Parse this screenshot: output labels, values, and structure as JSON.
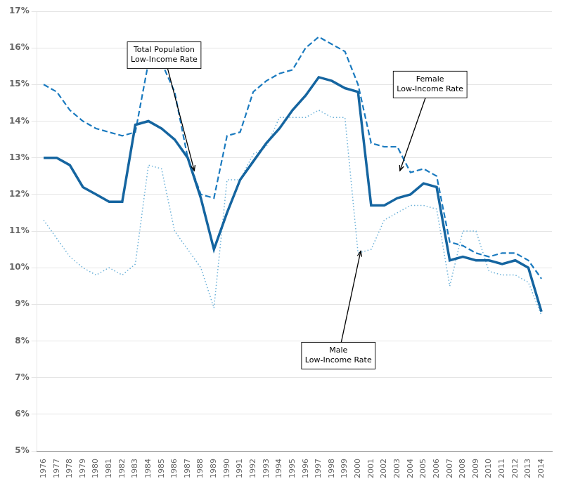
{
  "chart_data": {
    "type": "line",
    "x": [
      1976,
      1977,
      1978,
      1979,
      1980,
      1981,
      1982,
      1983,
      1984,
      1985,
      1986,
      1987,
      1988,
      1989,
      1990,
      1991,
      1992,
      1993,
      1994,
      1995,
      1996,
      1997,
      1998,
      1999,
      2000,
      2001,
      2002,
      2003,
      2004,
      2005,
      2006,
      2007,
      2008,
      2009,
      2010,
      2011,
      2012,
      2013,
      2014
    ],
    "series": [
      {
        "color": "#6ab0d8",
        "line_style": "dotted",
        "values": [
          0.113,
          0.108,
          0.103,
          0.1,
          0.098,
          0.1,
          0.098,
          0.101,
          0.128,
          0.127,
          0.11,
          0.105,
          0.1,
          0.089,
          0.124,
          0.124,
          0.131,
          0.133,
          0.141,
          0.141,
          0.141,
          0.143,
          0.141,
          0.141,
          0.104,
          0.105,
          0.113,
          0.115,
          0.117,
          0.117,
          0.116,
          0.095,
          0.11,
          0.11,
          0.099,
          0.098,
          0.098,
          0.096,
          0.087
        ]
      },
      {
        "color": "#1a7abf",
        "line_style": "dashed",
        "values": [
          0.15,
          0.148,
          0.143,
          0.14,
          0.138,
          0.137,
          0.136,
          0.137,
          0.156,
          0.156,
          0.148,
          0.13,
          0.12,
          0.119,
          0.136,
          0.137,
          0.148,
          0.151,
          0.153,
          0.154,
          0.16,
          0.163,
          0.161,
          0.159,
          0.15,
          0.134,
          0.133,
          0.133,
          0.126,
          0.127,
          0.125,
          0.107,
          0.106,
          0.104,
          0.103,
          0.104,
          0.104,
          0.102,
          0.097
        ]
      },
      {
        "color": "#1565a0",
        "line_style": "solid",
        "values": [
          0.13,
          0.13,
          0.128,
          0.122,
          0.12,
          0.118,
          0.118,
          0.139,
          0.14,
          0.138,
          0.135,
          0.13,
          0.119,
          0.105,
          0.115,
          0.124,
          0.129,
          0.134,
          0.138,
          0.143,
          0.147,
          0.152,
          0.151,
          0.149,
          0.148,
          0.117,
          0.117,
          0.119,
          0.12,
          0.123,
          0.122,
          0.102,
          0.103,
          0.102,
          0.102,
          0.101,
          0.102,
          0.1,
          0.088
        ]
      }
    ],
    "xlim": [
      1975.5,
      2014.8
    ],
    "xticks": [
      1976,
      1977,
      1978,
      1979,
      1980,
      1981,
      1982,
      1983,
      1984,
      1985,
      1986,
      1987,
      1988,
      1989,
      1990,
      1991,
      1992,
      1993,
      1994,
      1995,
      1996,
      1997,
      1998,
      1999,
      2000,
      2001,
      2002,
      2003,
      2004,
      2005,
      2006,
      2007,
      2008,
      2009,
      2010,
      2011,
      2012,
      2013,
      2014
    ],
    "ylim": [
      0.05,
      0.17
    ],
    "yticks": [
      {
        "value": 0.05,
        "label": "5%"
      },
      {
        "value": 0.06,
        "label": "6%"
      },
      {
        "value": 0.07,
        "label": "7%"
      },
      {
        "value": 0.08,
        "label": "8%"
      },
      {
        "value": 0.09,
        "label": "9%"
      },
      {
        "value": 0.1,
        "label": "10%"
      },
      {
        "value": 0.11,
        "label": "11%"
      },
      {
        "value": 0.12,
        "label": "12%"
      },
      {
        "value": 0.13,
        "label": "13%"
      },
      {
        "value": 0.14,
        "label": "14%"
      },
      {
        "value": 0.15,
        "label": "15%"
      },
      {
        "value": 0.16,
        "label": "16%"
      },
      {
        "value": 0.17,
        "label": "17%"
      }
    ],
    "grid": "y",
    "annotations": [
      {
        "text": "Total Population\nLow-Income Rate",
        "x": 1987.5,
        "y": 0.1265,
        "text_x": 1985.2,
        "text_y": 0.158
      },
      {
        "text": "Female\nLow-Income Rate",
        "x": 2003.2,
        "y": 0.1265,
        "text_x": 2005.5,
        "text_y": 0.15
      },
      {
        "text": "Male\nLow-Income Rate",
        "x": 2000.2,
        "y": 0.1045,
        "text_x": 1998.5,
        "text_y": 0.076
      }
    ]
  }
}
